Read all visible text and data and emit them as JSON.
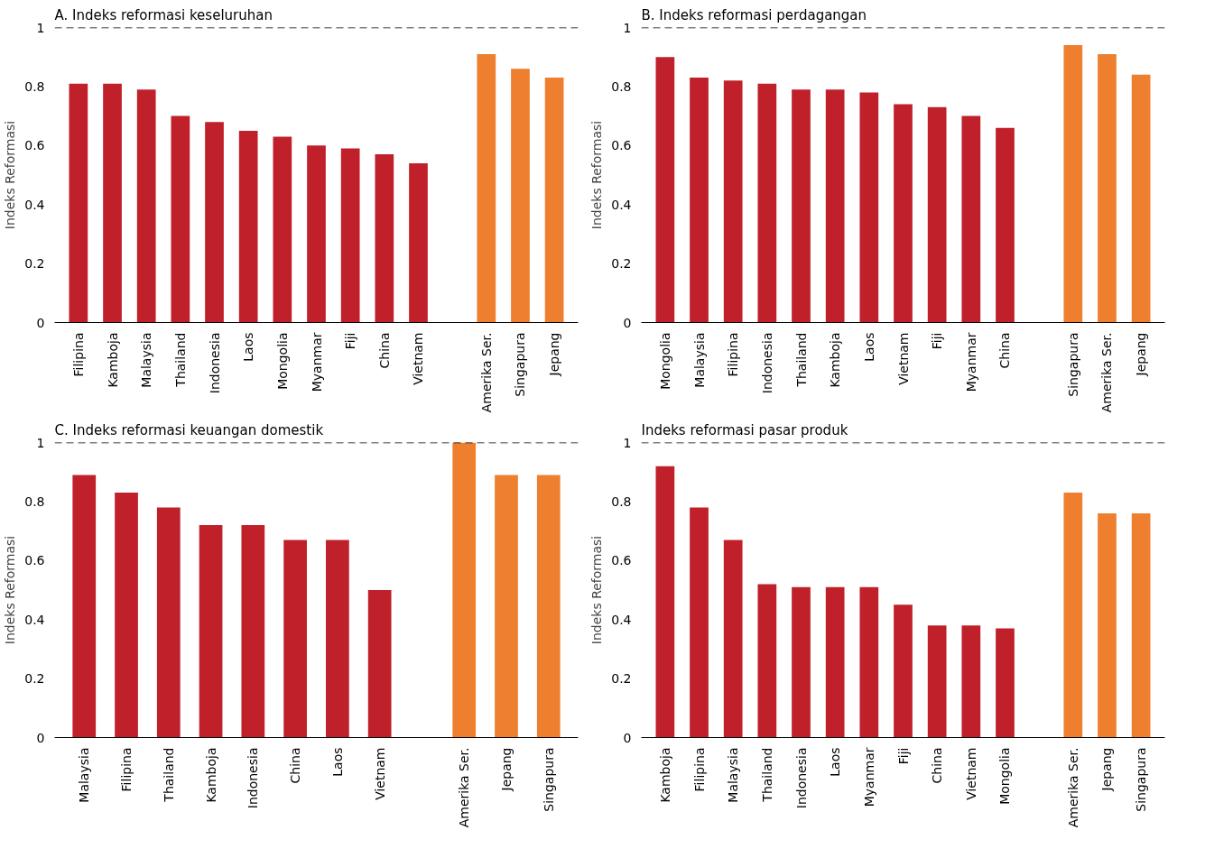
{
  "chart_data": [
    {
      "type": "bar",
      "title": "A. Indeks reformasi keseluruhan",
      "ylabel": "Indeks Reformasi",
      "categories": [
        "Filipina",
        "Kamboja",
        "Malaysia",
        "Thailand",
        "Indonesia",
        "Laos",
        "Mongolia",
        "Myanmar",
        "Fiji",
        "China",
        "Vietnam",
        null,
        "Amerika Ser.",
        "Singapura",
        "Jepang"
      ],
      "values": [
        0.81,
        0.81,
        0.79,
        0.7,
        0.68,
        0.65,
        0.63,
        0.6,
        0.59,
        0.57,
        0.54,
        null,
        0.91,
        0.86,
        0.83
      ],
      "colors": [
        "#c0202a",
        "#c0202a",
        "#c0202a",
        "#c0202a",
        "#c0202a",
        "#c0202a",
        "#c0202a",
        "#c0202a",
        "#c0202a",
        "#c0202a",
        "#c0202a",
        "#c0202a",
        "#ee7f2f",
        "#ee7f2f",
        "#ee7f2f"
      ],
      "ylim": [
        0,
        1
      ],
      "yticks": [
        0,
        0.2,
        0.4,
        0.6,
        0.8,
        1
      ],
      "ref_lines": [
        {
          "axis": "y",
          "value": 1,
          "color": "#000000",
          "line_style": "dashed"
        }
      ],
      "grid": false
    },
    {
      "type": "bar",
      "title": "B. Indeks reformasi perdagangan",
      "ylabel": "Indeks Reformasi",
      "categories": [
        "Mongolia",
        "Malaysia",
        "Filipina",
        "Indonesia",
        "Thailand",
        "Kamboja",
        "Laos",
        "Vietnam",
        "Fiji",
        "Myanmar",
        "China",
        null,
        "Singapura",
        "Amerika Ser.",
        "Jepang"
      ],
      "values": [
        0.9,
        0.83,
        0.82,
        0.81,
        0.79,
        0.79,
        0.78,
        0.74,
        0.73,
        0.7,
        0.66,
        null,
        0.94,
        0.91,
        0.84
      ],
      "colors": [
        "#c0202a",
        "#c0202a",
        "#c0202a",
        "#c0202a",
        "#c0202a",
        "#c0202a",
        "#c0202a",
        "#c0202a",
        "#c0202a",
        "#c0202a",
        "#c0202a",
        "#c0202a",
        "#ee7f2f",
        "#ee7f2f",
        "#ee7f2f"
      ],
      "ylim": [
        0,
        1
      ],
      "yticks": [
        0,
        0.2,
        0.4,
        0.6,
        0.8,
        1
      ],
      "ref_lines": [
        {
          "axis": "y",
          "value": 1,
          "color": "#000000",
          "line_style": "dashed"
        }
      ],
      "grid": false
    },
    {
      "type": "bar",
      "title": "C. Indeks reformasi keuangan domestik",
      "ylabel": "Indeks Reformasi",
      "categories": [
        "Malaysia",
        "Filipina",
        "Thailand",
        "Kamboja",
        "Indonesia",
        "China",
        "Laos",
        "Vietnam",
        null,
        "Amerika Ser.",
        "Jepang",
        "Singapura"
      ],
      "values": [
        0.89,
        0.83,
        0.78,
        0.72,
        0.72,
        0.67,
        0.67,
        0.5,
        null,
        1.0,
        0.89,
        0.89
      ],
      "colors": [
        "#c0202a",
        "#c0202a",
        "#c0202a",
        "#c0202a",
        "#c0202a",
        "#c0202a",
        "#c0202a",
        "#c0202a",
        "#c0202a",
        "#ee7f2f",
        "#ee7f2f",
        "#ee7f2f"
      ],
      "ylim": [
        0,
        1
      ],
      "yticks": [
        0,
        0.2,
        0.4,
        0.6,
        0.8,
        1
      ],
      "ref_lines": [
        {
          "axis": "y",
          "value": 1,
          "color": "#000000",
          "line_style": "dashed"
        }
      ],
      "grid": false
    },
    {
      "type": "bar",
      "title": "Indeks reformasi pasar produk",
      "ylabel": "Indeks Reformasi",
      "categories": [
        "Kamboja",
        "Filipina",
        "Malaysia",
        "Thailand",
        "Indonesia",
        "Laos",
        "Myanmar",
        "Fiji",
        "China",
        "Vietnam",
        "Mongolia",
        null,
        "Amerika Ser.",
        "Jepang",
        "Singapura"
      ],
      "values": [
        0.92,
        0.78,
        0.67,
        0.52,
        0.51,
        0.51,
        0.51,
        0.45,
        0.38,
        0.38,
        0.37,
        null,
        0.83,
        0.76,
        0.76
      ],
      "colors": [
        "#c0202a",
        "#c0202a",
        "#c0202a",
        "#c0202a",
        "#c0202a",
        "#c0202a",
        "#c0202a",
        "#c0202a",
        "#c0202a",
        "#c0202a",
        "#c0202a",
        "#c0202a",
        "#ee7f2f",
        "#ee7f2f",
        "#ee7f2f"
      ],
      "ylim": [
        0,
        1
      ],
      "yticks": [
        0,
        0.2,
        0.4,
        0.6,
        0.8,
        1
      ],
      "ref_lines": [
        {
          "axis": "y",
          "value": 1,
          "color": "#000000",
          "line_style": "dashed"
        }
      ],
      "grid": false
    }
  ]
}
